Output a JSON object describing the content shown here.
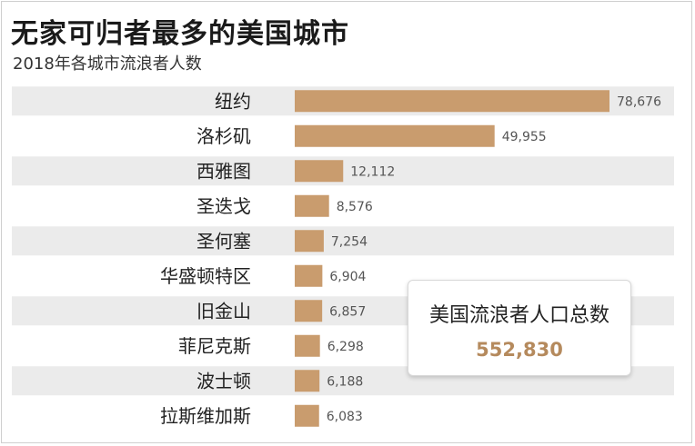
{
  "header": {
    "title": "无家可归者最多的美国城市",
    "subtitle": "2018年各城市流浪者人数"
  },
  "callout": {
    "label": "美国流浪者人口总数",
    "value": "552,830"
  },
  "colors": {
    "bar": "#c99c6e",
    "stripe": "#ebebeb",
    "callout_value": "#b58a5d"
  },
  "chart_data": {
    "type": "bar",
    "orientation": "horizontal",
    "title": "无家可归者最多的美国城市",
    "subtitle": "2018年各城市流浪者人数",
    "categories": [
      "纽约",
      "洛杉矶",
      "西雅图",
      "圣迭戈",
      "圣何塞",
      "华盛顿特区",
      "旧金山",
      "菲尼克斯",
      "波士顿",
      "拉斯维加斯"
    ],
    "values": [
      78676,
      49955,
      12112,
      8576,
      7254,
      6904,
      6857,
      6298,
      6188,
      6083
    ],
    "value_labels": [
      "78,676",
      "49,955",
      "12,112",
      "8,576",
      "7,254",
      "6,904",
      "6,857",
      "6,298",
      "6,188",
      "6,083"
    ],
    "xlim": [
      0,
      78676
    ],
    "xlabel": "",
    "ylabel": ""
  }
}
